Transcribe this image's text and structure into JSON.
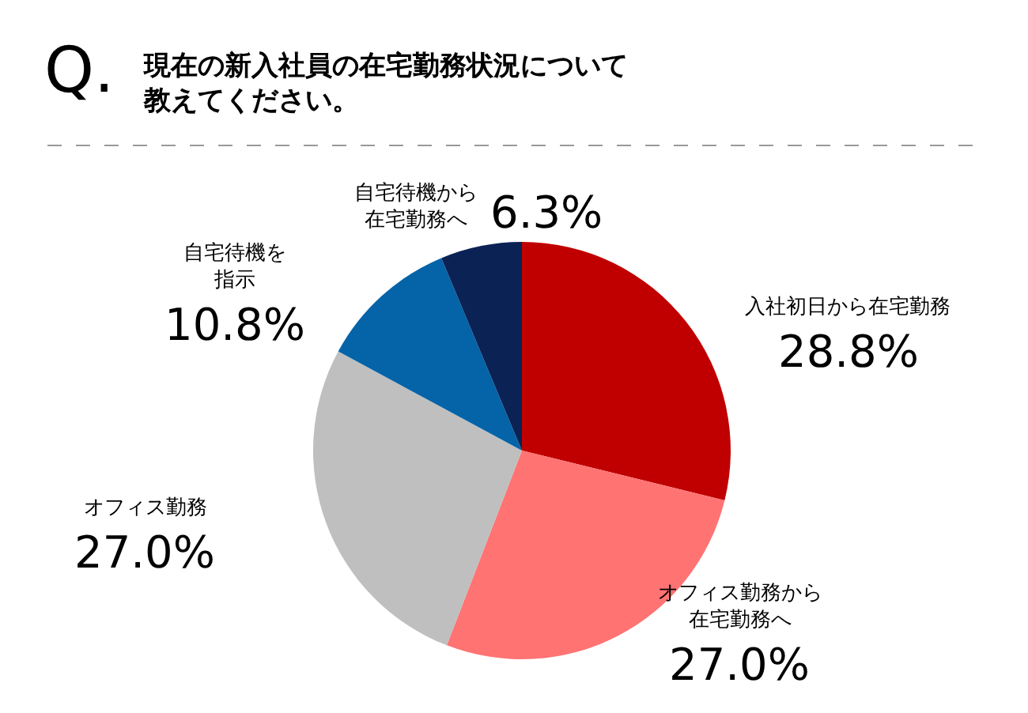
{
  "chart_data": {
    "type": "pie",
    "title": "Q.",
    "subtitle": "現在の新入社員の在宅勤務状況について教えてください。",
    "categories": [
      "入社初日から在宅勤務",
      "オフィス勤務から在宅勤務へ",
      "オフィス勤務",
      "自宅待機を指示",
      "自宅待機から在宅勤務へ"
    ],
    "values": [
      28.8,
      27.0,
      27.0,
      10.8,
      6.3
    ],
    "value_labels": [
      "28.8%",
      "27.0%",
      "27.0%",
      "10.8%",
      "6.3%"
    ],
    "colors": [
      "#c00000",
      "#ff7373",
      "#bfbfbf",
      "#0563a8",
      "#0b2255"
    ],
    "legend": false
  }
}
